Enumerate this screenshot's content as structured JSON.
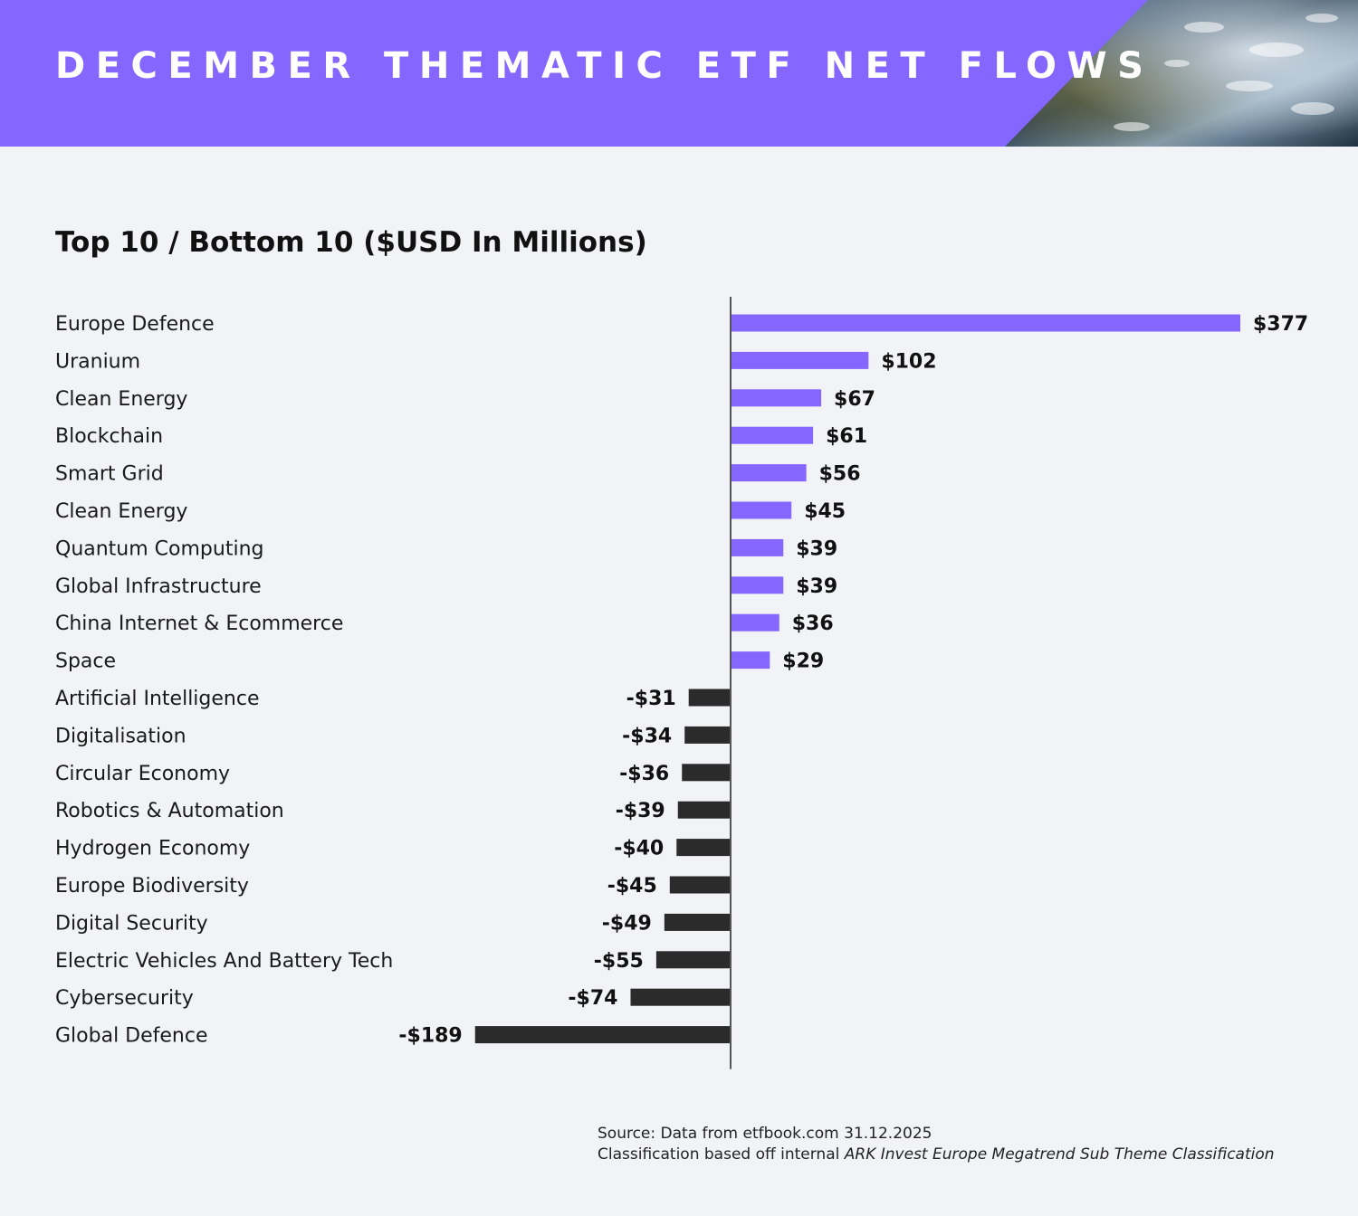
{
  "header": {
    "title": "December Thematic ETF Net Flows"
  },
  "subtitle": "Top 10 / Bottom 10 ($USD In Millions)",
  "colors": {
    "header_bg": "#8566ff",
    "positive": "#8566ff",
    "negative": "#2b2b2b",
    "axis": "#555555"
  },
  "chart_data": {
    "type": "bar",
    "orientation": "horizontal",
    "title": "Top 10 / Bottom 10 ($USD In Millions)",
    "xlabel": "",
    "ylabel": "",
    "xlim": [
      -189,
      377
    ],
    "grid": false,
    "categories": [
      "Europe Defence",
      "Uranium",
      "Clean Energy",
      "Blockchain",
      "Smart Grid",
      "Clean Energy",
      "Quantum Computing",
      "Global Infrastructure",
      "China Internet & Ecommerce",
      "Space",
      "Artificial Intelligence",
      "Digitalisation",
      "Circular Economy",
      "Robotics & Automation",
      "Hydrogen Economy",
      "Europe Biodiversity",
      "Digital Security",
      "Electric Vehicles And Battery Tech",
      "Cybersecurity",
      "Global Defence"
    ],
    "values": [
      377,
      102,
      67,
      61,
      56,
      45,
      39,
      39,
      36,
      29,
      -31,
      -34,
      -36,
      -39,
      -40,
      -45,
      -49,
      -55,
      -74,
      -189
    ],
    "value_labels": [
      "$377",
      "$102",
      "$67",
      "$61",
      "$56",
      "$45",
      "$39",
      "$39",
      "$36",
      "$29",
      "-$31",
      "-$34",
      "-$36",
      "-$39",
      "-$40",
      "-$45",
      "-$49",
      "-$55",
      "-$74",
      "-$189"
    ]
  },
  "footer": {
    "source_line": "Source: Data from etfbook.com 31.12.2025",
    "classification_prefix": "Classification based off internal ",
    "classification_italic": "ARK Invest Europe Megatrend Sub Theme Classification"
  }
}
